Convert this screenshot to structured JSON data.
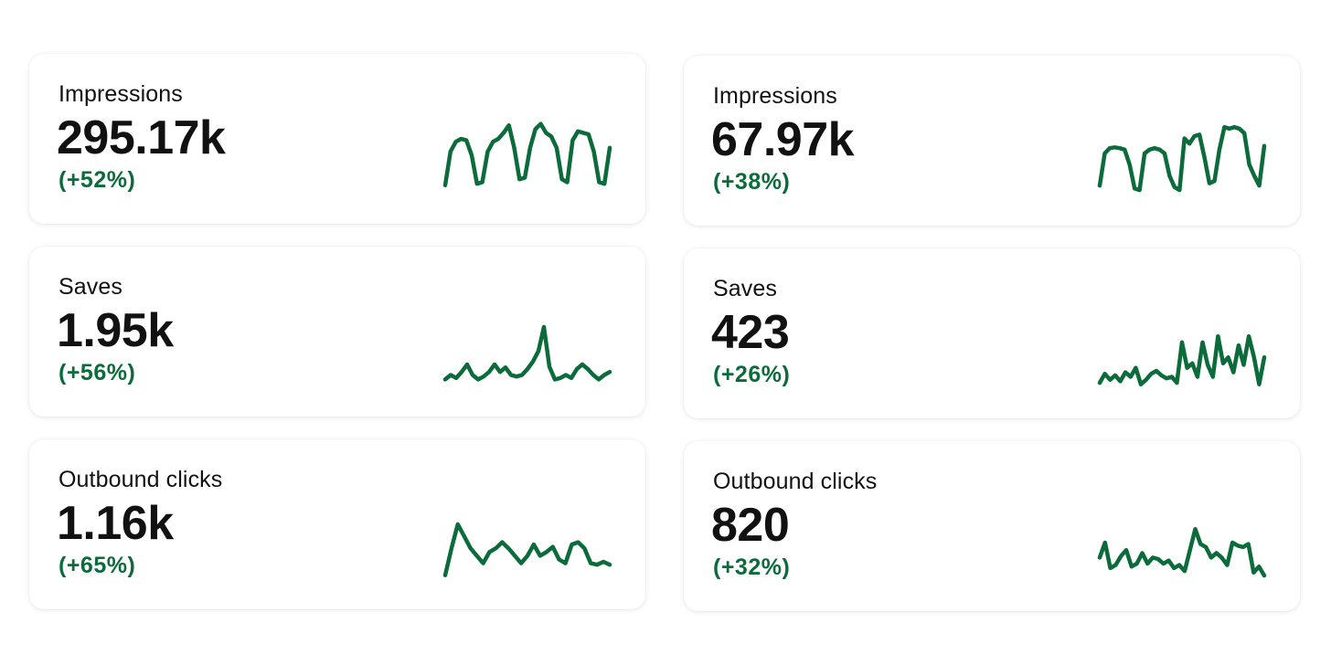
{
  "accent_color": "#0b6b3a",
  "cards": [
    {
      "label": "Impressions",
      "value": "295.17k",
      "change": "(+52%)",
      "sparkline": [
        10,
        55,
        68,
        72,
        70,
        50,
        12,
        14,
        55,
        68,
        72,
        80,
        90,
        60,
        18,
        20,
        60,
        85,
        92,
        80,
        75,
        60,
        18,
        14,
        70,
        82,
        80,
        78,
        55,
        14,
        12,
        60
      ]
    },
    {
      "label": "Impressions",
      "value": "67.97k",
      "change": "(+38%)",
      "sparkline": [
        12,
        55,
        62,
        63,
        62,
        60,
        40,
        8,
        6,
        55,
        60,
        62,
        60,
        55,
        25,
        10,
        6,
        75,
        68,
        78,
        80,
        50,
        15,
        18,
        60,
        90,
        88,
        90,
        88,
        82,
        40,
        25,
        12,
        65
      ]
    },
    {
      "label": "Saves",
      "value": "1.95k",
      "change": "(+56%)",
      "sparkline": [
        8,
        14,
        10,
        18,
        28,
        14,
        8,
        12,
        18,
        28,
        18,
        24,
        14,
        12,
        14,
        22,
        32,
        46,
        78,
        25,
        8,
        10,
        14,
        10,
        22,
        28,
        22,
        14,
        8,
        14,
        18
      ]
    },
    {
      "label": "Saves",
      "value": "423",
      "change": "(+26%)",
      "sparkline": [
        6,
        18,
        10,
        16,
        8,
        20,
        14,
        26,
        4,
        10,
        18,
        22,
        16,
        12,
        14,
        6,
        60,
        26,
        32,
        14,
        60,
        30,
        14,
        68,
        32,
        40,
        20,
        56,
        30,
        68,
        40,
        4,
        40
      ]
    },
    {
      "label": "Outbound clicks",
      "value": "1.16k",
      "change": "(+65%)",
      "sparkline": [
        4,
        40,
        72,
        56,
        40,
        30,
        20,
        35,
        40,
        48,
        40,
        30,
        20,
        30,
        45,
        30,
        35,
        42,
        25,
        20,
        45,
        48,
        40,
        20,
        18,
        22,
        18
      ]
    },
    {
      "label": "Outbound clicks",
      "value": "820",
      "change": "(+32%)",
      "sparkline": [
        30,
        50,
        16,
        20,
        32,
        40,
        18,
        22,
        36,
        22,
        30,
        28,
        22,
        26,
        16,
        20,
        12,
        40,
        68,
        48,
        44,
        30,
        36,
        30,
        20,
        50,
        46,
        44,
        48,
        10,
        18,
        6
      ]
    }
  ]
}
